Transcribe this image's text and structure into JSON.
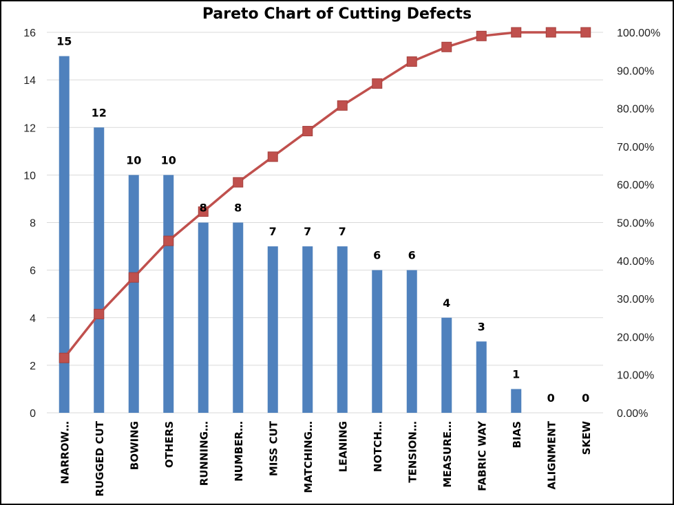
{
  "chart_data": {
    "type": "bar",
    "title": "Pareto Chart of Cutting Defects",
    "categories": [
      "NARROW…",
      "RUGGED CUT",
      "BOWING",
      "OTHERS",
      "RUNNING…",
      "NUMBER…",
      "MISS CUT",
      "MATCHING…",
      "LEANING",
      "NOTCH…",
      "TENSION…",
      "MEASURE…",
      "FABRIC  WAY",
      "BIAS",
      "ALIGNMENT",
      "SKEW"
    ],
    "series": [
      {
        "type": "bar",
        "values": [
          15,
          12,
          10,
          10,
          8,
          8,
          7,
          7,
          7,
          6,
          6,
          4,
          3,
          1,
          0,
          0
        ],
        "color": "#4F81BD",
        "data_labels": true
      },
      {
        "type": "line",
        "axis": "right",
        "values": [
          0.1442,
          0.2596,
          0.3558,
          0.4519,
          0.5288,
          0.6058,
          0.6731,
          0.7404,
          0.8077,
          0.8654,
          0.9231,
          0.9615,
          0.9904,
          1.0,
          1.0,
          1.0
        ],
        "color": "#C0504D",
        "marker": "square"
      }
    ],
    "ylim": [
      0,
      16
    ],
    "y_ticks": [
      0,
      2,
      4,
      6,
      8,
      10,
      12,
      14,
      16
    ],
    "y2lim": [
      0,
      1
    ],
    "y2_ticks": [
      "0.00%",
      "10.00%",
      "20.00%",
      "30.00%",
      "40.00%",
      "50.00%",
      "60.00%",
      "70.00%",
      "80.00%",
      "90.00%",
      "100.00%"
    ],
    "grid": true,
    "legend": "none"
  }
}
